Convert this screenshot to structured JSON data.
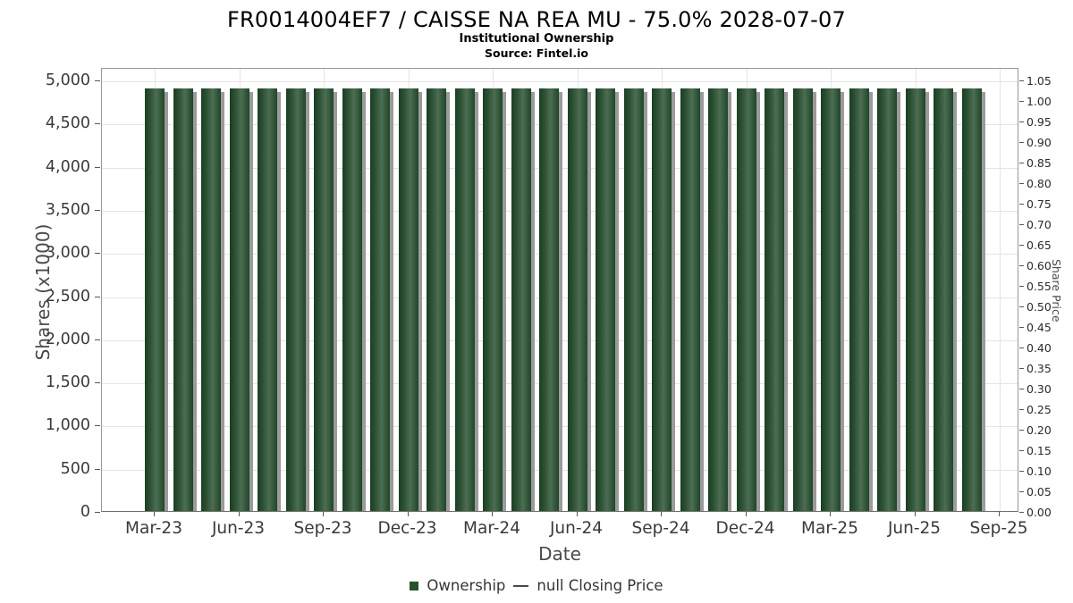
{
  "header": {
    "title": "FR0014004EF7 / CAISSE NA REA MU - 75.0% 2028-07-07",
    "subtitle": "Institutional Ownership",
    "source": "Source: Fintel.io"
  },
  "legend": {
    "ownership_label": "Ownership",
    "price_label": "null Closing Price",
    "ownership_color": "#26512e",
    "price_line_color": "#4a4a4a"
  },
  "colors": {
    "bar_dark": "#1b3e23",
    "bar_light": "#4c6d52",
    "bar_shadow": "#9b9b9b",
    "gridline": "#e4e4e4",
    "plot_border": "#979797",
    "tick_text": "#3a3a3a"
  },
  "chart_data": {
    "type": "bar",
    "title": "FR0014004EF7 / CAISSE NA REA MU - 75.0% 2028-07-07",
    "subtitle": "Institutional Ownership",
    "source": "Source: Fintel.io",
    "xlabel": "Date",
    "ylabel_left": "Shares (x1000)",
    "ylabel_right": "Share Price",
    "categories": [
      "Mar-23",
      "Apr-23",
      "May-23",
      "Jun-23",
      "Jul-23",
      "Aug-23",
      "Sep-23",
      "Oct-23",
      "Nov-23",
      "Dec-23",
      "Jan-24",
      "Feb-24",
      "Mar-24",
      "Apr-24",
      "May-24",
      "Jun-24",
      "Jul-24",
      "Aug-24",
      "Sep-24",
      "Oct-24",
      "Nov-24",
      "Dec-24",
      "Jan-25",
      "Feb-25",
      "Mar-25",
      "Apr-25",
      "May-25",
      "Jun-25",
      "Jul-25",
      "Aug-25"
    ],
    "series": [
      {
        "name": "Ownership",
        "type": "bar",
        "values": [
          4900,
          4900,
          4900,
          4900,
          4900,
          4900,
          4900,
          4900,
          4900,
          4900,
          4900,
          4900,
          4900,
          4900,
          4900,
          4900,
          4900,
          4900,
          4900,
          4900,
          4900,
          4900,
          4900,
          4900,
          4900,
          4900,
          4900,
          4900,
          4900,
          4900
        ]
      },
      {
        "name": "null Closing Price",
        "type": "line",
        "values": []
      }
    ],
    "y_left_axis": {
      "label": "Shares (x1000)",
      "min": 0,
      "max": 5000,
      "step": 500,
      "plot_max": 5150
    },
    "y_right_axis": {
      "label": "Share Price",
      "min": 0.0,
      "max": 1.05,
      "step": 0.05
    },
    "x_tick_labels": [
      "Mar-23",
      "Jun-23",
      "Sep-23",
      "Dec-23",
      "Mar-24",
      "Jun-24",
      "Sep-24",
      "Dec-24",
      "Mar-25",
      "Jun-25",
      "Sep-25"
    ],
    "grid": true,
    "legend_position": "bottom"
  }
}
